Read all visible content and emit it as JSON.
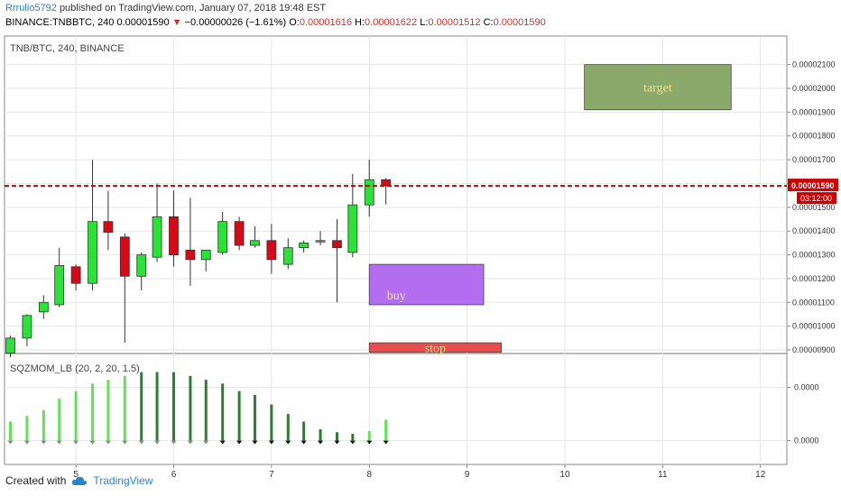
{
  "header": {
    "author": "Rrrulio5792",
    "published": "published on TradingView.com, January 07, 2018 19:48 EST",
    "symbol": "BINANCE:TNBBTC, 240",
    "last": "0.00001590",
    "change": "−0.00000026 (−1.61%)",
    "o_label": "O:",
    "o": "0.00001616",
    "h_label": "H:",
    "h": "0.00001622",
    "l_label": "L:",
    "l": "0.00001512",
    "c_label": "C:",
    "c": "0.00001590"
  },
  "footer": {
    "created_with": "Created with",
    "brand": "TradingView"
  },
  "colors": {
    "up": "#2de03a",
    "down": "#d10b17",
    "price_line": "#cc0000",
    "target": "#8aa96b",
    "buy": "#b36df0",
    "stop": "#e84c4c",
    "mom_light": "#66e05a",
    "mom_dark": "#2f7d32"
  },
  "chart_data": [
    {
      "type": "candlestick",
      "title": "TNB/BTC, 240, BINANCE",
      "x_tick_labels": [
        "5",
        "6",
        "7",
        "8",
        "9",
        "10",
        "11",
        "12"
      ],
      "xlim": [
        4.27,
        12.27
      ],
      "ylim": [
        8.85e-06,
        2.22e-05
      ],
      "y_tick_labels": [
        "0.00002100",
        "0.00002000",
        "0.00001900",
        "0.00001800",
        "0.00001700",
        "0.00001600",
        "0.00001500",
        "0.00001400",
        "0.00001300",
        "0.00001200",
        "0.00001100",
        "0.00001000",
        "0.00000900"
      ],
      "current_price": {
        "value": "0.00001590",
        "countdown": "03:12:00"
      },
      "candles": [
        {
          "x": 4.33,
          "o": 8.87e-06,
          "h": 9.6e-06,
          "l": 8.7e-06,
          "c": 9.5e-06
        },
        {
          "x": 4.5,
          "o": 9.5e-06,
          "h": 1.05e-05,
          "l": 9.15e-06,
          "c": 1.045e-05
        },
        {
          "x": 4.67,
          "o": 1.06e-05,
          "h": 1.13e-05,
          "l": 1.03e-05,
          "c": 1.1e-05
        },
        {
          "x": 4.83,
          "o": 1.09e-05,
          "h": 1.33e-05,
          "l": 1.08e-05,
          "c": 1.255e-05
        },
        {
          "x": 5.0,
          "o": 1.25e-05,
          "h": 1.26e-05,
          "l": 1.15e-05,
          "c": 1.18e-05
        },
        {
          "x": 5.17,
          "o": 1.18e-05,
          "h": 1.7e-05,
          "l": 1.15e-05,
          "c": 1.44e-05
        },
        {
          "x": 5.33,
          "o": 1.44e-05,
          "h": 1.57e-05,
          "l": 1.32e-05,
          "c": 1.395e-05
        },
        {
          "x": 5.5,
          "o": 1.375e-05,
          "h": 1.39e-05,
          "l": 9.3e-06,
          "c": 1.21e-05
        },
        {
          "x": 5.67,
          "o": 1.21e-05,
          "h": 1.31e-05,
          "l": 1.15e-05,
          "c": 1.3e-05
        },
        {
          "x": 5.83,
          "o": 1.29e-05,
          "h": 1.6e-05,
          "l": 1.27e-05,
          "c": 1.46e-05
        },
        {
          "x": 6.0,
          "o": 1.46e-05,
          "h": 1.57e-05,
          "l": 1.25e-05,
          "c": 1.3e-05
        },
        {
          "x": 6.17,
          "o": 1.32e-05,
          "h": 1.54e-05,
          "l": 1.17e-05,
          "c": 1.28e-05
        },
        {
          "x": 6.33,
          "o": 1.28e-05,
          "h": 1.31e-05,
          "l": 1.23e-05,
          "c": 1.32e-05
        },
        {
          "x": 6.5,
          "o": 1.31e-05,
          "h": 1.48e-05,
          "l": 1.3e-05,
          "c": 1.44e-05
        },
        {
          "x": 6.67,
          "o": 1.44e-05,
          "h": 1.46e-05,
          "l": 1.32e-05,
          "c": 1.34e-05
        },
        {
          "x": 6.83,
          "o": 1.34e-05,
          "h": 1.42e-05,
          "l": 1.33e-05,
          "c": 1.36e-05
        },
        {
          "x": 7.0,
          "o": 1.36e-05,
          "h": 1.43e-05,
          "l": 1.22e-05,
          "c": 1.28e-05
        },
        {
          "x": 7.17,
          "o": 1.26e-05,
          "h": 1.37e-05,
          "l": 1.24e-05,
          "c": 1.33e-05
        },
        {
          "x": 7.33,
          "o": 1.33e-05,
          "h": 1.36e-05,
          "l": 1.31e-05,
          "c": 1.35e-05
        },
        {
          "x": 7.5,
          "o": 1.355e-05,
          "h": 1.4e-05,
          "l": 1.34e-05,
          "c": 1.36e-05
        },
        {
          "x": 7.67,
          "o": 1.36e-05,
          "h": 1.45e-05,
          "l": 1.1e-05,
          "c": 1.33e-05
        },
        {
          "x": 7.83,
          "o": 1.31e-05,
          "h": 1.64e-05,
          "l": 1.29e-05,
          "c": 1.51e-05
        },
        {
          "x": 8.0,
          "o": 1.51e-05,
          "h": 1.7e-05,
          "l": 1.46e-05,
          "c": 1.616e-05
        },
        {
          "x": 8.17,
          "o": 1.616e-05,
          "h": 1.622e-05,
          "l": 1.512e-05,
          "c": 1.59e-05
        }
      ],
      "annotations": [
        {
          "label": "target",
          "x0": 10.2,
          "x1": 11.7,
          "y0": 1.91e-05,
          "y1": 2.1e-05,
          "color": "#8aa96b",
          "text_color": "#f3e08a"
        },
        {
          "label": "buy",
          "x0": 8.0,
          "x1": 9.17,
          "y0": 1.09e-05,
          "y1": 1.26e-05,
          "color": "#b36df0",
          "text_color": "#f3e08a"
        },
        {
          "label": "stop",
          "x0": 8.0,
          "x1": 9.35,
          "y0": 8.9e-06,
          "y1": 9.3e-06,
          "color": "#e84c4c",
          "text_color": "#f3e08a"
        }
      ]
    },
    {
      "type": "bar",
      "title": "SQZMOM_LB (20, 2, 20, 1.5)",
      "ylim": [
        -2e-07,
        2.1e-06
      ],
      "y_tick_labels": [
        "0.0000",
        "0.0000"
      ],
      "x": [
        4.33,
        4.5,
        4.67,
        4.83,
        5.0,
        5.17,
        5.33,
        5.5,
        5.67,
        5.83,
        6.0,
        6.17,
        6.33,
        6.5,
        6.67,
        6.83,
        7.0,
        7.17,
        7.33,
        7.5,
        7.67,
        7.83,
        8.0,
        8.17
      ],
      "values": [
        5e-07,
        6.5e-07,
        8e-07,
        1.1e-06,
        1.3e-06,
        1.5e-06,
        1.6e-06,
        1.7e-06,
        1.8e-06,
        1.8e-06,
        1.8e-06,
        1.7e-06,
        1.6e-06,
        1.5e-06,
        1.3e-06,
        1.2e-06,
        9.5e-07,
        7e-07,
        5e-07,
        3e-07,
        2.2e-07,
        1.8e-07,
        2.5e-07,
        5.5e-07
      ],
      "bar_colors": [
        "light",
        "light",
        "light",
        "light",
        "light",
        "light",
        "light",
        "light",
        "dark",
        "dark",
        "dark",
        "dark",
        "dark",
        "dark",
        "dark",
        "dark",
        "dark",
        "dark",
        "dark",
        "dark",
        "dark",
        "dark",
        "light",
        "light"
      ],
      "dot_colors": [
        "gray",
        "gray",
        "gray",
        "gray",
        "gray",
        "gray",
        "gray",
        "gray",
        "gray",
        "gray",
        "gray",
        "gray",
        "gray",
        "black",
        "black",
        "black",
        "black",
        "black",
        "black",
        "black",
        "black",
        "black",
        "black",
        "black"
      ]
    }
  ]
}
